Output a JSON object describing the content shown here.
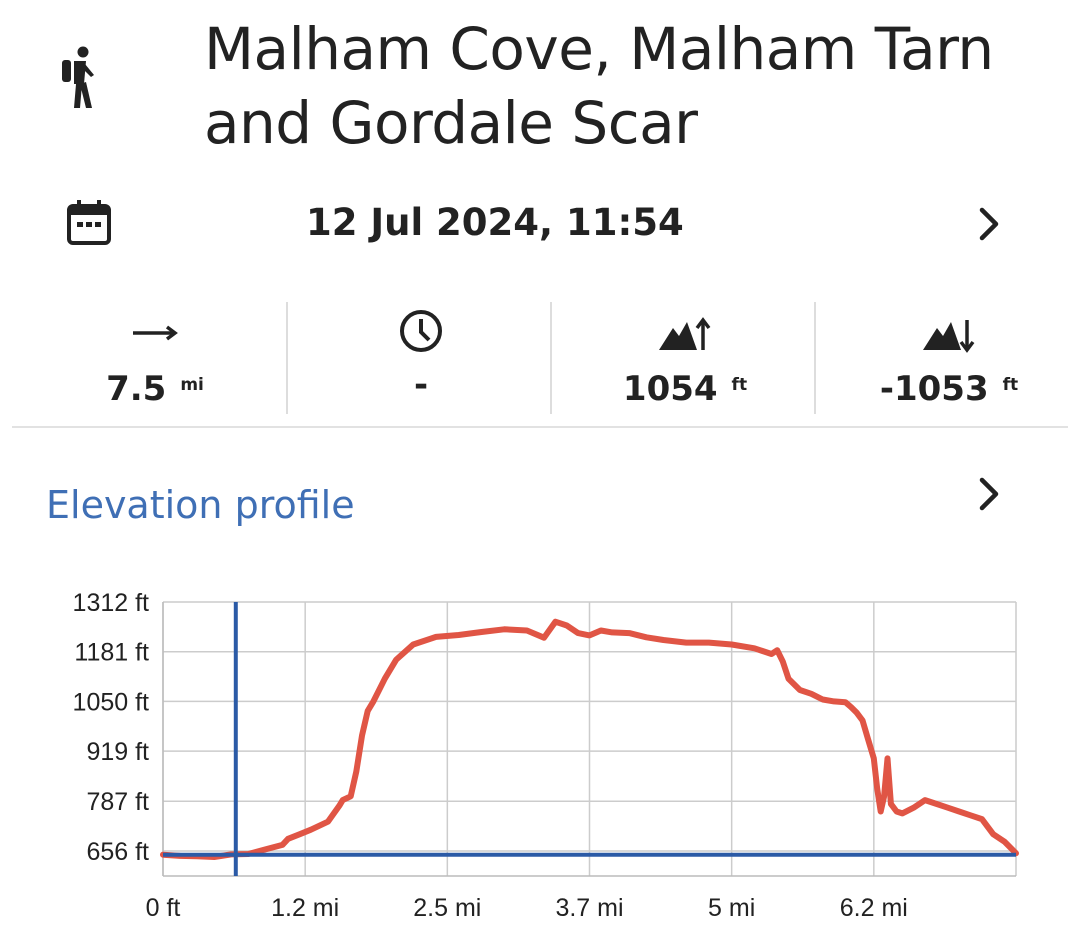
{
  "activity": {
    "icon": "hiker-icon",
    "title_line1": "Malham Cove, Malham Tarn",
    "title_line2": "and Gordale Scar"
  },
  "date_row": {
    "icon": "calendar-icon",
    "datetime": "12 Jul 2024, 11:54",
    "chevron": "chevron-right-icon"
  },
  "stats": [
    {
      "icon": "arrow-right-icon",
      "value": "7.5",
      "unit": "mi"
    },
    {
      "icon": "clock-icon",
      "value": "-",
      "unit": ""
    },
    {
      "icon": "mountain-ascent-icon",
      "value": "1054",
      "unit": "ft"
    },
    {
      "icon": "mountain-descent-icon",
      "value": "-1053",
      "unit": "ft"
    }
  ],
  "elevation": {
    "title": "Elevation profile",
    "chevron": "chevron-right-icon"
  },
  "colors": {
    "accent": "#3f6fb5",
    "profile_line": "#e05545",
    "cursor": "#2b5aa6",
    "grid": "#cccccc"
  },
  "chart_data": {
    "type": "line",
    "xlabel": "",
    "ylabel": "",
    "xlim": [
      0,
      7.5
    ],
    "ylim": [
      590,
      1312
    ],
    "x_ticks": [
      0,
      1.25,
      2.5,
      3.75,
      5,
      6.25
    ],
    "x_tick_labels": [
      "0 ft",
      "1.2 mi",
      "2.5 mi",
      "3.7 mi",
      "5 mi",
      "6.2 mi"
    ],
    "y_ticks": [
      656,
      787,
      919,
      1050,
      1181,
      1312
    ],
    "y_tick_labels": [
      "656 ft",
      "787 ft",
      "919 ft",
      "1050 ft",
      "1181 ft",
      "1312 ft"
    ],
    "cursor": {
      "x": 0.64,
      "y": 646
    },
    "series": [
      {
        "x": [
          0,
          0.15,
          0.3,
          0.45,
          0.6,
          0.75,
          0.9,
          1.05,
          1.1,
          1.2,
          1.3,
          1.45,
          1.55,
          1.58,
          1.65,
          1.7,
          1.75,
          1.8,
          1.85,
          1.95,
          2.05,
          2.2,
          2.4,
          2.6,
          2.8,
          3.0,
          3.2,
          3.35,
          3.45,
          3.55,
          3.65,
          3.75,
          3.85,
          3.95,
          4.1,
          4.25,
          4.4,
          4.6,
          4.8,
          5.0,
          5.2,
          5.35,
          5.4,
          5.45,
          5.5,
          5.6,
          5.7,
          5.8,
          5.9,
          6.0,
          6.05,
          6.1,
          6.15,
          6.2,
          6.25,
          6.28,
          6.31,
          6.34,
          6.37,
          6.4,
          6.45,
          6.5,
          6.6,
          6.7,
          6.8,
          6.9,
          7.0,
          7.1,
          7.2,
          7.3,
          7.4,
          7.5
        ],
        "y": [
          646,
          643,
          642,
          640,
          647,
          648,
          660,
          672,
          688,
          700,
          712,
          733,
          775,
          790,
          800,
          865,
          960,
          1025,
          1050,
          1110,
          1160,
          1200,
          1220,
          1225,
          1233,
          1240,
          1237,
          1218,
          1260,
          1250,
          1230,
          1224,
          1237,
          1232,
          1230,
          1219,
          1212,
          1205,
          1205,
          1200,
          1190,
          1175,
          1185,
          1155,
          1110,
          1080,
          1070,
          1055,
          1050,
          1048,
          1035,
          1020,
          1000,
          950,
          900,
          820,
          760,
          800,
          900,
          780,
          760,
          755,
          770,
          790,
          780,
          770,
          760,
          750,
          740,
          700,
          680,
          650
        ]
      }
    ]
  }
}
